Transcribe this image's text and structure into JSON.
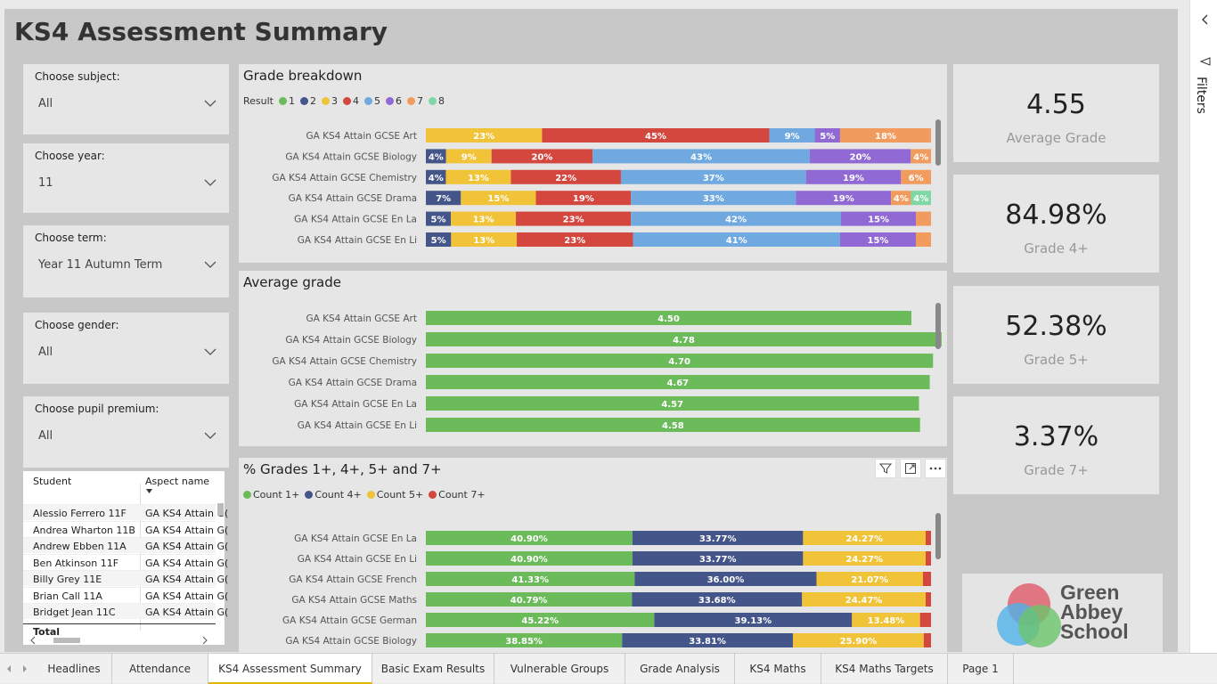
{
  "title": "KS4 Assessment Summary",
  "slicers": [
    {
      "label": "Choose subject:",
      "value": "All"
    },
    {
      "label": "Choose year:",
      "value": "11"
    },
    {
      "label": "Choose term:",
      "value": "Year 11 Autumn Term"
    },
    {
      "label": "Choose gender:",
      "value": "All"
    },
    {
      "label": "Choose pupil premium:",
      "value": "All"
    }
  ],
  "colors": {
    "g1": "#6bbb5b",
    "g2": "#44558a",
    "g3": "#f0c338",
    "g4": "#d3473f",
    "g5": "#6fa9e0",
    "g6": "#9069d4",
    "g7": "#f29b5e",
    "g8": "#7fd7a6"
  },
  "grade_breakdown": {
    "title": "Grade breakdown",
    "legend_title": "Result",
    "legend": [
      "1",
      "2",
      "3",
      "4",
      "5",
      "6",
      "7",
      "8"
    ],
    "chart_data": {
      "type": "bar",
      "categories": [
        "GA KS4 Attain GCSE Art",
        "GA KS4 Attain GCSE Biology",
        "GA KS4 Attain GCSE Chemistry",
        "GA KS4 Attain GCSE Drama",
        "GA KS4 Attain GCSE En La",
        "GA KS4 Attain GCSE En Li"
      ],
      "rows": [
        [
          {
            "g": 3,
            "v": 23,
            "label": "23%"
          },
          {
            "g": 4,
            "v": 45,
            "label": "45%"
          },
          {
            "g": 5,
            "v": 9,
            "label": "9%"
          },
          {
            "g": 6,
            "v": 5,
            "label": "5%"
          },
          {
            "g": 7,
            "v": 18,
            "label": "18%"
          }
        ],
        [
          {
            "g": 2,
            "v": 4,
            "label": "4%"
          },
          {
            "g": 3,
            "v": 9,
            "label": "9%"
          },
          {
            "g": 4,
            "v": 20,
            "label": "20%"
          },
          {
            "g": 5,
            "v": 43,
            "label": "43%"
          },
          {
            "g": 6,
            "v": 20,
            "label": "20%"
          },
          {
            "g": 7,
            "v": 4,
            "label": "4%"
          }
        ],
        [
          {
            "g": 2,
            "v": 4,
            "label": "4%"
          },
          {
            "g": 3,
            "v": 13,
            "label": "13%"
          },
          {
            "g": 4,
            "v": 22,
            "label": "22%"
          },
          {
            "g": 5,
            "v": 37,
            "label": "37%"
          },
          {
            "g": 6,
            "v": 19,
            "label": "19%"
          },
          {
            "g": 7,
            "v": 6,
            "label": "6%"
          }
        ],
        [
          {
            "g": 2,
            "v": 7,
            "label": "7%"
          },
          {
            "g": 3,
            "v": 15,
            "label": "15%"
          },
          {
            "g": 4,
            "v": 19,
            "label": "19%"
          },
          {
            "g": 5,
            "v": 33,
            "label": "33%"
          },
          {
            "g": 6,
            "v": 19,
            "label": "19%"
          },
          {
            "g": 7,
            "v": 4,
            "label": "4%"
          },
          {
            "g": 8,
            "v": 4,
            "label": "4%"
          }
        ],
        [
          {
            "g": 2,
            "v": 5,
            "label": "5%"
          },
          {
            "g": 3,
            "v": 13,
            "label": "13%"
          },
          {
            "g": 4,
            "v": 23,
            "label": "23%"
          },
          {
            "g": 5,
            "v": 42,
            "label": "42%"
          },
          {
            "g": 6,
            "v": 15,
            "label": "15%"
          },
          {
            "g": 7,
            "v": 3,
            "label": ""
          }
        ],
        [
          {
            "g": 2,
            "v": 5,
            "label": "5%"
          },
          {
            "g": 3,
            "v": 13,
            "label": "13%"
          },
          {
            "g": 4,
            "v": 23,
            "label": "23%"
          },
          {
            "g": 5,
            "v": 41,
            "label": "41%"
          },
          {
            "g": 6,
            "v": 15,
            "label": "15%"
          },
          {
            "g": 7,
            "v": 3,
            "label": ""
          }
        ]
      ]
    }
  },
  "average_grade": {
    "title": "Average grade",
    "chart_data": {
      "type": "bar",
      "categories": [
        "GA KS4 Attain GCSE Art",
        "GA KS4 Attain GCSE Biology",
        "GA KS4 Attain GCSE Chemistry",
        "GA KS4 Attain GCSE Drama",
        "GA KS4 Attain GCSE En La",
        "GA KS4 Attain GCSE En Li"
      ],
      "values": [
        4.5,
        4.78,
        4.7,
        4.67,
        4.57,
        4.58
      ],
      "labels": [
        "4.50",
        "4.78",
        "4.70",
        "4.67",
        "4.57",
        "4.58"
      ],
      "xlim": [
        0,
        5
      ]
    }
  },
  "pct_grades": {
    "title": "% Grades 1+, 4+, 5+ and 7+",
    "legend": [
      "Count 1+",
      "Count 4+",
      "Count 5+",
      "Count 7+"
    ],
    "chart_data": {
      "type": "bar",
      "categories": [
        "GA KS4 Attain GCSE En La",
        "GA KS4 Attain GCSE En Li",
        "GA KS4 Attain GCSE French",
        "GA KS4 Attain GCSE Maths",
        "GA KS4 Attain GCSE German",
        "GA KS4 Attain GCSE Biology"
      ],
      "series": [
        {
          "name": "Count 1+",
          "values": [
            40.9,
            40.9,
            41.33,
            40.79,
            45.22,
            38.85
          ],
          "labels": [
            "40.90%",
            "40.90%",
            "41.33%",
            "40.79%",
            "45.22%",
            "38.85%"
          ]
        },
        {
          "name": "Count 4+",
          "values": [
            33.77,
            33.77,
            36.0,
            33.68,
            39.13,
            33.81
          ],
          "labels": [
            "33.77%",
            "33.77%",
            "36.00%",
            "33.68%",
            "39.13%",
            "33.81%"
          ]
        },
        {
          "name": "Count 5+",
          "values": [
            24.27,
            24.27,
            21.07,
            24.47,
            13.48,
            25.9
          ],
          "labels": [
            "24.27%",
            "24.27%",
            "21.07%",
            "24.47%",
            "13.48%",
            "25.90%"
          ]
        },
        {
          "name": "Count 7+",
          "values": [
            1.06,
            1.06,
            1.6,
            1.06,
            2.17,
            1.44
          ],
          "labels": [
            "",
            "",
            "",
            "",
            "",
            ""
          ]
        }
      ]
    }
  },
  "kpis": [
    {
      "value": "4.55",
      "caption": "Average Grade"
    },
    {
      "value": "84.98%",
      "caption": "Grade 4+"
    },
    {
      "value": "52.38%",
      "caption": "Grade 5+"
    },
    {
      "value": "3.37%",
      "caption": "Grade 7+"
    }
  ],
  "logo": {
    "line1": "Green",
    "line2": "Abbey",
    "line3": "School"
  },
  "students": {
    "headers": [
      "Student",
      "Aspect name"
    ],
    "rows": [
      [
        "Alessio Ferrero 11F",
        "GA KS4 Attain G("
      ],
      [
        "Andrea Wharton 11B",
        "GA KS4 Attain G("
      ],
      [
        "Andrew Ebben 11A",
        "GA KS4 Attain G("
      ],
      [
        "Ben Atkinson 11F",
        "GA KS4 Attain G("
      ],
      [
        "Billy Grey 11E",
        "GA KS4 Attain G("
      ],
      [
        "Brian Call 11A",
        "GA KS4 Attain G("
      ],
      [
        "Bridget Jean 11C",
        "GA KS4 Attain G("
      ]
    ],
    "total_label": "Total"
  },
  "filters_label": "Filters",
  "tabs": [
    "Headlines",
    "Attendance",
    "KS4 Assessment Summary",
    "Basic Exam Results",
    "Vulnerable Groups",
    "Grade Analysis",
    "KS4 Maths",
    "KS4 Maths Targets",
    "Page 1"
  ],
  "active_tab": "KS4 Assessment Summary"
}
